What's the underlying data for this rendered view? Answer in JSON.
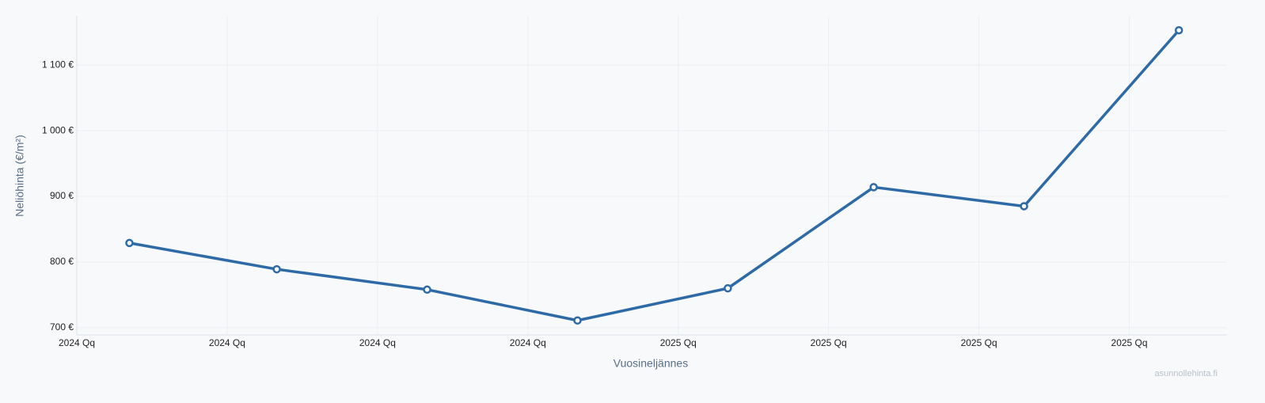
{
  "chart_data": {
    "type": "line",
    "x_label": "Vuosineljännes",
    "y_label": "Neliöhinta (€/m²)",
    "watermark": "asunnollehinta.fi",
    "x": [
      0.35,
      1.33,
      2.33,
      3.33,
      4.33,
      5.3,
      6.3,
      7.33
    ],
    "series": [
      {
        "name": "Neliöhinta",
        "color": "#2e6aa6",
        "values": [
          829,
          789,
          758,
          711,
          760,
          914,
          885,
          1153
        ]
      }
    ],
    "xlim": [
      0,
      7.65
    ],
    "xticks": [
      {
        "value": 0,
        "label": "2024 Qq"
      },
      {
        "value": 1,
        "label": "2024 Qq"
      },
      {
        "value": 2,
        "label": "2024 Qq"
      },
      {
        "value": 3,
        "label": "2024 Qq"
      },
      {
        "value": 4,
        "label": "2025 Qq"
      },
      {
        "value": 5,
        "label": "2025 Qq"
      },
      {
        "value": 6,
        "label": "2025 Qq"
      },
      {
        "value": 7,
        "label": "2025 Qq"
      }
    ],
    "ylim": [
      689,
      1175
    ],
    "yticks": [
      {
        "value": 700,
        "label": "700 €"
      },
      {
        "value": 800,
        "label": "800 €"
      },
      {
        "value": 900,
        "label": "900 €"
      },
      {
        "value": 1000,
        "label": "1 000 €"
      },
      {
        "value": 1100,
        "label": "1 100 €"
      }
    ],
    "grid": true
  }
}
